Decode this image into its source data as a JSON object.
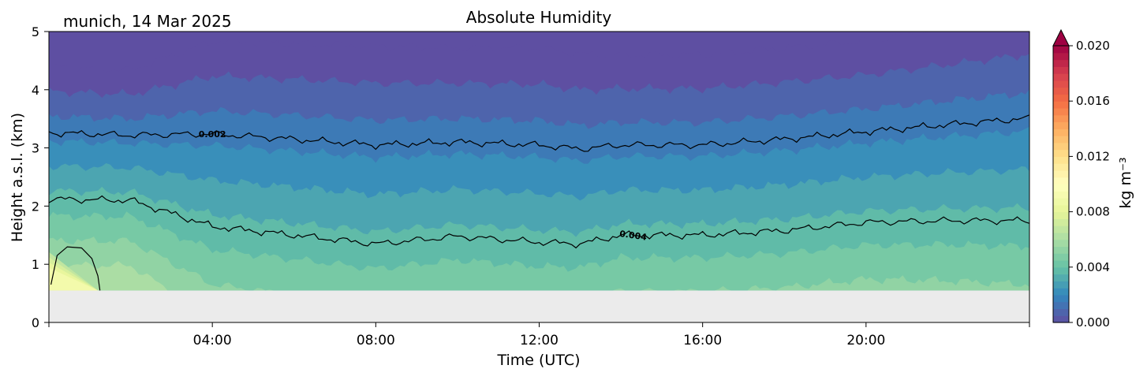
{
  "header": {
    "location_date": "munich, 14 Mar 2025"
  },
  "chart_data": {
    "type": "heatmap",
    "subtype": "filled-contour",
    "title": "Absolute Humidity",
    "xlabel": "Time (UTC)",
    "ylabel": "Height a.s.l. (km)",
    "xlim": [
      "00:00",
      "24:00"
    ],
    "ylim": [
      0,
      5
    ],
    "x_ticks": [
      "04:00",
      "08:00",
      "12:00",
      "16:00",
      "20:00"
    ],
    "x_tick_hours": [
      4,
      8,
      12,
      16,
      20
    ],
    "y_ticks": [
      "0",
      "1",
      "2",
      "3",
      "4",
      "5"
    ],
    "y_tick_values": [
      0,
      1,
      2,
      3,
      4,
      5
    ],
    "data_bottom_km": 0.55,
    "no_data_color": "#ebebeb",
    "colorbar": {
      "label": "kg m⁻³",
      "range": [
        0.0,
        0.02
      ],
      "ticks": [
        "0.000",
        "0.004",
        "0.008",
        "0.012",
        "0.016",
        "0.020"
      ],
      "tick_values": [
        0.0,
        0.004,
        0.008,
        0.012,
        0.016,
        0.02
      ],
      "extend": "max",
      "colormap": "Spectral_r"
    },
    "contour_lines": [
      {
        "level": 0.002,
        "label": "0.002",
        "label_hour": 4.0
      },
      {
        "level": 0.004,
        "label": "0.004",
        "label_hour": 14.3
      },
      {
        "level": 0.006,
        "label": ""
      }
    ],
    "height_profile_hours": [
      0,
      2,
      4,
      6,
      8,
      10,
      12,
      13,
      14,
      16,
      18,
      20,
      22,
      24
    ],
    "isoline_0p002_km": [
      3.26,
      3.22,
      3.24,
      3.15,
      3.05,
      3.1,
      3.05,
      2.98,
      3.05,
      3.05,
      3.15,
      3.28,
      3.4,
      3.51
    ],
    "isoline_0p004_km": [
      2.12,
      2.1,
      1.65,
      1.5,
      1.35,
      1.48,
      1.38,
      1.35,
      1.5,
      1.5,
      1.58,
      1.72,
      1.75,
      1.75
    ]
  }
}
